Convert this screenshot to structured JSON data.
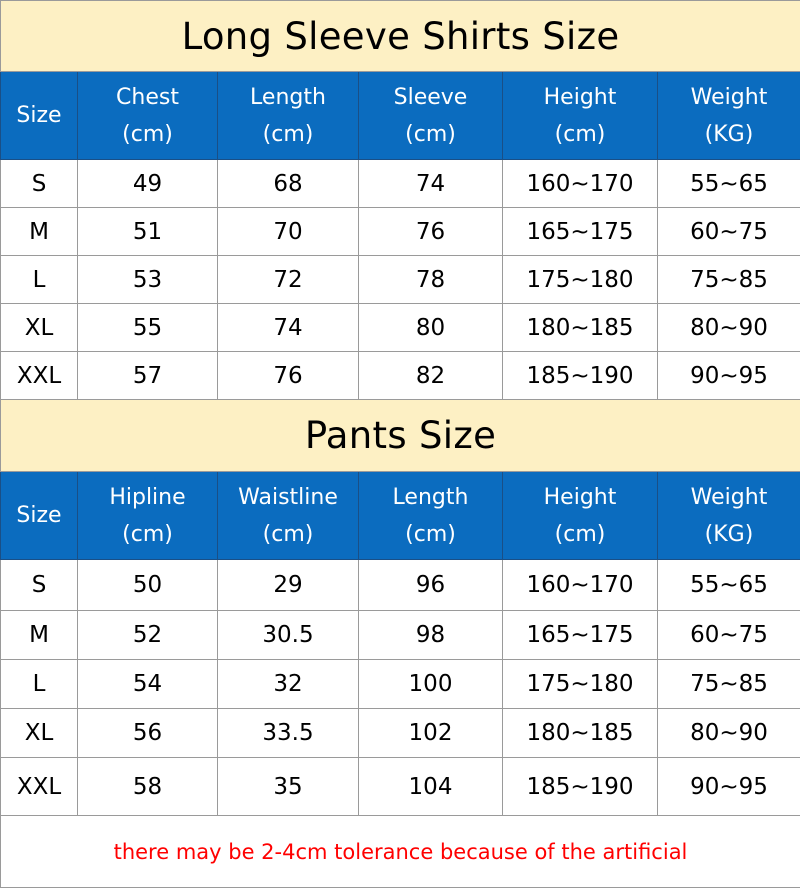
{
  "shirts": {
    "title": "Long Sleeve Shirts Size",
    "headers": [
      [
        "Size",
        ""
      ],
      [
        "Chest",
        "(cm)"
      ],
      [
        "Length",
        "(cm)"
      ],
      [
        "Sleeve",
        "(cm)"
      ],
      [
        "Height",
        "(cm)"
      ],
      [
        "Weight",
        "(KG)"
      ]
    ],
    "rows": [
      [
        "S",
        "49",
        "68",
        "74",
        "160~170",
        "55~65"
      ],
      [
        "M",
        "51",
        "70",
        "76",
        "165~175",
        "60~75"
      ],
      [
        "L",
        "53",
        "72",
        "78",
        "175~180",
        "75~85"
      ],
      [
        "XL",
        "55",
        "74",
        "80",
        "180~185",
        "80~90"
      ],
      [
        "XXL",
        "57",
        "76",
        "82",
        "185~190",
        "90~95"
      ]
    ]
  },
  "pants": {
    "title": "Pants Size",
    "headers": [
      [
        "Size",
        ""
      ],
      [
        "Hipline",
        "(cm)"
      ],
      [
        "Waistline",
        "(cm)"
      ],
      [
        "Length",
        "(cm)"
      ],
      [
        "Height",
        "(cm)"
      ],
      [
        "Weight",
        "(KG)"
      ]
    ],
    "rows": [
      [
        "S",
        "50",
        "29",
        "96",
        "160~170",
        "55~65"
      ],
      [
        "M",
        "52",
        "30.5",
        "98",
        "165~175",
        "60~75"
      ],
      [
        "L",
        "54",
        "32",
        "100",
        "175~180",
        "75~85"
      ],
      [
        "XL",
        "56",
        "33.5",
        "102",
        "180~185",
        "80~90"
      ],
      [
        "XXL",
        "58",
        "35",
        "104",
        "185~190",
        "90~95"
      ]
    ]
  },
  "footer_note": "there may be 2-4cm tolerance because of the artificial",
  "colors": {
    "title_bg": "#fdf0c4",
    "header_bg": "#0b6cbf",
    "note": "#ff0000"
  }
}
